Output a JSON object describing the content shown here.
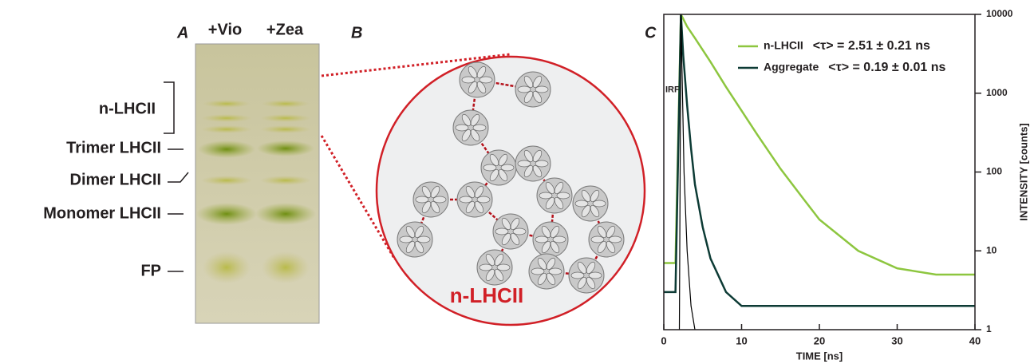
{
  "panel_a": {
    "letter": "A",
    "lanes": [
      "+Vio",
      "+Zea"
    ],
    "bands": [
      "n-LHCII",
      "Trimer LHCII",
      "Dimer LHCII",
      "Monomer LHCII",
      "FP"
    ]
  },
  "panel_b": {
    "letter": "B",
    "label": "n-LHCII"
  },
  "chart_data": {
    "type": "line",
    "panel_letter": "C",
    "x_label": "TIME [ns]",
    "y_label": "INTENSITY [counts]",
    "xlim": [
      0,
      40
    ],
    "ylim": [
      1,
      10000
    ],
    "log_y": true,
    "xticks": [
      0,
      10,
      20,
      30,
      40
    ],
    "yticks": [
      1,
      10,
      100,
      1000,
      10000
    ],
    "legend": "upper right",
    "series": [
      {
        "name": "n-LHCII",
        "color": "#8dc63f",
        "tau_label": "<τ> = 2.51 ± 0.21 ns",
        "legend": true,
        "x": [
          0,
          1.5,
          2.2,
          3,
          4,
          6,
          8,
          10,
          12,
          15,
          18,
          20,
          25,
          30,
          35,
          40
        ],
        "values": [
          7,
          7,
          10000,
          7000,
          5000,
          2500,
          1200,
          600,
          300,
          110,
          45,
          25,
          10,
          6,
          5,
          5
        ]
      },
      {
        "name": "Aggregate",
        "color": "#0d3b35",
        "tau_label": "<τ> = 0.19 ± 0.01 ns",
        "legend": true,
        "x": [
          0,
          1.5,
          2.2,
          2.5,
          3,
          3.5,
          4,
          5,
          6,
          8,
          10,
          20,
          30,
          40
        ],
        "values": [
          3,
          3,
          10000,
          3000,
          700,
          200,
          70,
          20,
          8,
          3,
          2,
          2,
          2,
          2
        ]
      },
      {
        "name": "IRF",
        "color": "#000000",
        "legend": false,
        "x": [
          2,
          2.2,
          2.6,
          3,
          3.5,
          4
        ],
        "values": [
          1,
          10000,
          100,
          10,
          2,
          1
        ]
      }
    ]
  }
}
